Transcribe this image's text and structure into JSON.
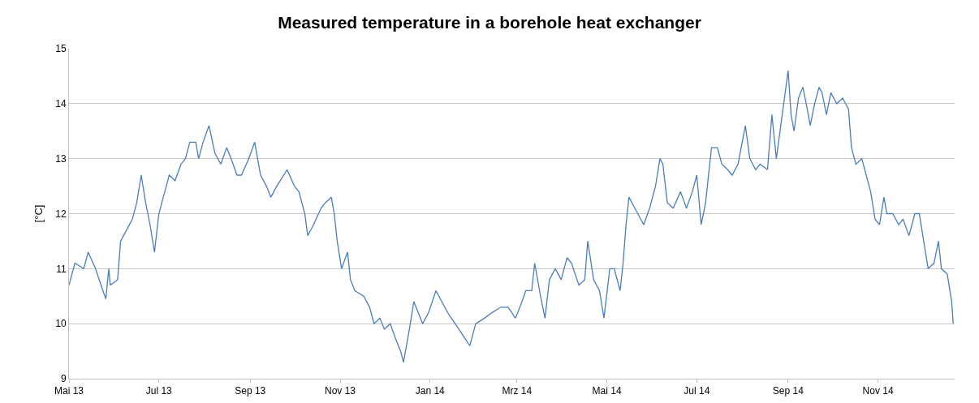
{
  "chart_data": {
    "type": "line",
    "title": "Measured temperature in a borehole heat exchanger",
    "ylabel": "[°C]",
    "x": [
      "2013-05-01",
      "2013-05-05",
      "2013-05-11",
      "2013-05-14",
      "2013-05-19",
      "2013-05-24",
      "2013-05-26",
      "2013-05-28",
      "2013-05-29",
      "2013-06-03",
      "2013-06-05",
      "2013-06-09",
      "2013-06-13",
      "2013-06-16",
      "2013-06-19",
      "2013-06-22",
      "2013-06-25",
      "2013-06-28",
      "2013-07-01",
      "2013-07-05",
      "2013-07-08",
      "2013-07-12",
      "2013-07-16",
      "2013-07-19",
      "2013-07-22",
      "2013-07-26",
      "2013-07-28",
      "2013-07-31",
      "2013-08-04",
      "2013-08-08",
      "2013-08-12",
      "2013-08-16",
      "2013-08-19",
      "2013-08-23",
      "2013-08-26",
      "2013-08-31",
      "2013-09-04",
      "2013-09-08",
      "2013-09-12",
      "2013-09-15",
      "2013-09-19",
      "2013-09-26",
      "2013-10-01",
      "2013-10-04",
      "2013-10-08",
      "2013-10-10",
      "2013-10-14",
      "2013-10-19",
      "2013-10-22",
      "2013-10-26",
      "2013-10-28",
      "2013-10-30",
      "2013-11-02",
      "2013-11-06",
      "2013-11-08",
      "2013-11-11",
      "2013-11-17",
      "2013-11-21",
      "2013-11-24",
      "2013-11-28",
      "2013-12-01",
      "2013-12-05",
      "2013-12-09",
      "2013-12-12",
      "2013-12-14",
      "2013-12-18",
      "2013-12-21",
      "2013-12-24",
      "2013-12-27",
      "2013-12-31",
      "2014-01-05",
      "2014-01-09",
      "2014-01-13",
      "2014-01-18",
      "2014-01-23",
      "2014-01-28",
      "2014-02-01",
      "2014-02-07",
      "2014-02-12",
      "2014-02-18",
      "2014-02-23",
      "2014-02-28",
      "2014-03-03",
      "2014-03-07",
      "2014-03-11",
      "2014-03-13",
      "2014-03-17",
      "2014-03-20",
      "2014-03-23",
      "2014-03-27",
      "2014-03-31",
      "2014-04-04",
      "2014-04-07",
      "2014-04-12",
      "2014-04-16",
      "2014-04-18",
      "2014-04-22",
      "2014-04-26",
      "2014-04-29",
      "2014-05-03",
      "2014-05-06",
      "2014-05-10",
      "2014-05-12",
      "2014-05-14",
      "2014-05-16",
      "2014-05-20",
      "2014-05-24",
      "2014-05-26",
      "2014-05-30",
      "2014-06-03",
      "2014-06-06",
      "2014-06-08",
      "2014-06-11",
      "2014-06-15",
      "2014-06-20",
      "2014-06-24",
      "2014-06-28",
      "2014-07-01",
      "2014-07-04",
      "2014-07-07",
      "2014-07-11",
      "2014-07-15",
      "2014-07-18",
      "2014-07-22",
      "2014-07-25",
      "2014-07-29",
      "2014-08-03",
      "2014-08-06",
      "2014-08-10",
      "2014-08-13",
      "2014-08-18",
      "2014-08-21",
      "2014-08-24",
      "2014-08-27",
      "2014-08-29",
      "2014-09-01",
      "2014-09-03",
      "2014-09-05",
      "2014-09-08",
      "2014-09-11",
      "2014-09-14",
      "2014-09-16",
      "2014-09-19",
      "2014-09-22",
      "2014-09-24",
      "2014-09-27",
      "2014-09-30",
      "2014-10-04",
      "2014-10-08",
      "2014-10-12",
      "2014-10-14",
      "2014-10-17",
      "2014-10-21",
      "2014-10-24",
      "2014-10-27",
      "2014-10-30",
      "2014-11-02",
      "2014-11-05",
      "2014-11-07",
      "2014-11-11",
      "2014-11-15",
      "2014-11-18",
      "2014-11-22",
      "2014-11-26",
      "2014-11-29",
      "2014-12-02",
      "2014-12-05",
      "2014-12-09",
      "2014-12-12",
      "2014-12-14",
      "2014-12-18",
      "2014-12-21",
      "2014-12-22"
    ],
    "series": [
      {
        "color": "#4a7ebb",
        "values": [
          10.7,
          11.1,
          11.0,
          11.3,
          11.0,
          10.6,
          10.45,
          11.0,
          10.7,
          10.8,
          11.5,
          11.7,
          11.9,
          12.2,
          12.7,
          12.2,
          11.8,
          11.3,
          12.0,
          12.4,
          12.7,
          12.6,
          12.9,
          13.0,
          13.3,
          13.3,
          13.0,
          13.3,
          13.6,
          13.1,
          12.9,
          13.2,
          13.0,
          12.7,
          12.7,
          13.0,
          13.3,
          12.7,
          12.5,
          12.3,
          12.5,
          12.8,
          12.5,
          12.4,
          12.0,
          11.6,
          11.8,
          12.1,
          12.2,
          12.3,
          12.0,
          11.5,
          11.0,
          11.3,
          10.8,
          10.6,
          10.5,
          10.3,
          10.0,
          10.1,
          9.9,
          10.0,
          9.7,
          9.5,
          9.3,
          9.9,
          10.4,
          10.2,
          10.0,
          10.2,
          10.6,
          10.4,
          10.2,
          10.0,
          9.8,
          9.6,
          10.0,
          10.1,
          10.2,
          10.3,
          10.3,
          10.1,
          10.3,
          10.6,
          10.6,
          11.1,
          10.5,
          10.1,
          10.8,
          11.0,
          10.8,
          11.2,
          11.1,
          10.7,
          10.8,
          11.5,
          10.8,
          10.6,
          10.1,
          11.0,
          11.0,
          10.6,
          11.1,
          11.8,
          12.3,
          12.1,
          11.9,
          11.8,
          12.1,
          12.5,
          13.0,
          12.9,
          12.2,
          12.1,
          12.4,
          12.1,
          12.4,
          12.7,
          11.8,
          12.2,
          13.2,
          13.2,
          12.9,
          12.8,
          12.7,
          12.9,
          13.6,
          13.0,
          12.8,
          12.9,
          12.8,
          13.8,
          13.0,
          13.6,
          14.0,
          14.6,
          13.8,
          13.5,
          14.1,
          14.3,
          13.9,
          13.6,
          14.0,
          14.3,
          14.2,
          13.8,
          14.2,
          14.0,
          14.1,
          13.9,
          13.2,
          12.9,
          13.0,
          12.7,
          12.4,
          11.9,
          11.8,
          12.3,
          12.0,
          12.0,
          11.8,
          11.9,
          11.6,
          12.0,
          12.0,
          11.5,
          11.0,
          11.1,
          11.5,
          11.0,
          10.9,
          10.4,
          10.0
        ]
      }
    ],
    "xlim": [
      "2013-05-01",
      "2014-12-23"
    ],
    "xticks": [
      {
        "value": "2013-05-01",
        "label": "Mai 13"
      },
      {
        "value": "2013-07-01",
        "label": "Jul 13"
      },
      {
        "value": "2013-09-01",
        "label": "Sep 13"
      },
      {
        "value": "2013-11-01",
        "label": "Nov 13"
      },
      {
        "value": "2014-01-01",
        "label": "Jan 14"
      },
      {
        "value": "2014-03-01",
        "label": "Mrz 14"
      },
      {
        "value": "2014-05-01",
        "label": "Mai 14"
      },
      {
        "value": "2014-07-01",
        "label": "Jul 14"
      },
      {
        "value": "2014-09-01",
        "label": "Sep 14"
      },
      {
        "value": "2014-11-01",
        "label": "Nov 14"
      }
    ],
    "ylim": [
      9,
      15
    ],
    "yticks": [
      9,
      10,
      11,
      12,
      13,
      14,
      15
    ],
    "grid": "y",
    "marker": "none",
    "line_style": "solid"
  }
}
